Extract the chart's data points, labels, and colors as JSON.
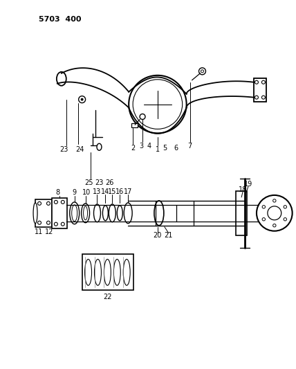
{
  "title": "5703  400",
  "bg_color": "#ffffff",
  "line_color": "#000000",
  "text_color": "#000000",
  "fig_width": 4.28,
  "fig_height": 5.33,
  "dpi": 100
}
